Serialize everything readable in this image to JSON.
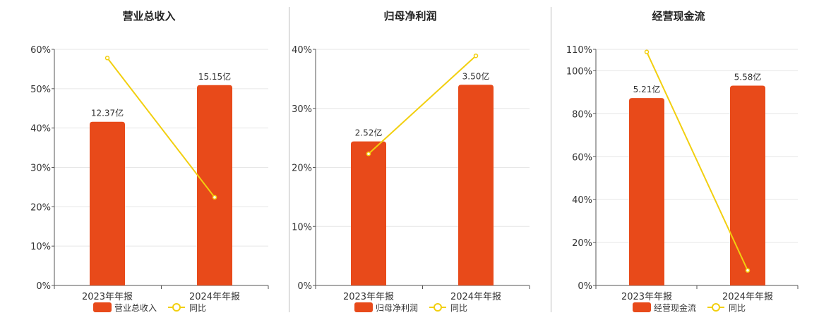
{
  "chart_data": [
    {
      "type": "bar",
      "title": "营业总收入",
      "categories": [
        "2023年年报",
        "2024年年报"
      ],
      "series": [
        {
          "name": "营业总收入",
          "kind": "bar",
          "values": [
            12.37,
            15.15
          ],
          "labels": [
            "12.37亿",
            "15.15亿"
          ]
        },
        {
          "name": "同比",
          "kind": "line",
          "values": [
            57.8,
            22.4
          ]
        }
      ],
      "ylim": [
        0,
        60
      ],
      "yticks": [
        "0%",
        "10%",
        "20%",
        "30%",
        "40%",
        "50%",
        "60%"
      ],
      "bar_heights_pct": [
        41.6,
        50.9
      ],
      "grid": true,
      "legend": "bottom"
    },
    {
      "type": "bar",
      "title": "归母净利润",
      "categories": [
        "2023年年报",
        "2024年年报"
      ],
      "series": [
        {
          "name": "归母净利润",
          "kind": "bar",
          "values": [
            2.52,
            3.5
          ],
          "labels": [
            "2.52亿",
            "3.50亿"
          ]
        },
        {
          "name": "同比",
          "kind": "line",
          "values": [
            22.3,
            38.9
          ]
        }
      ],
      "ylim": [
        0,
        40
      ],
      "yticks": [
        "0%",
        "10%",
        "20%",
        "30%",
        "40%"
      ],
      "bar_heights_pct": [
        24.4,
        34.0
      ],
      "grid": true,
      "legend": "bottom"
    },
    {
      "type": "bar",
      "title": "经营现金流",
      "categories": [
        "2023年年报",
        "2024年年报"
      ],
      "series": [
        {
          "name": "经营现金流",
          "kind": "bar",
          "values": [
            5.21,
            5.58
          ],
          "labels": [
            "5.21亿",
            "5.58亿"
          ]
        },
        {
          "name": "同比",
          "kind": "line",
          "values": [
            108.8,
            7.0
          ]
        }
      ],
      "ylim": [
        0,
        110
      ],
      "yticks": [
        "0%",
        "20%",
        "40%",
        "60%",
        "80%",
        "100%",
        "110%"
      ],
      "bar_heights_pct": [
        87.3,
        93.1
      ],
      "grid": true,
      "legend": "bottom"
    }
  ],
  "colors": {
    "bar": "#e84a1a",
    "line": "#f2cf0f",
    "grid": "#e6e6e6",
    "axis": "#555555",
    "text": "#333333"
  }
}
